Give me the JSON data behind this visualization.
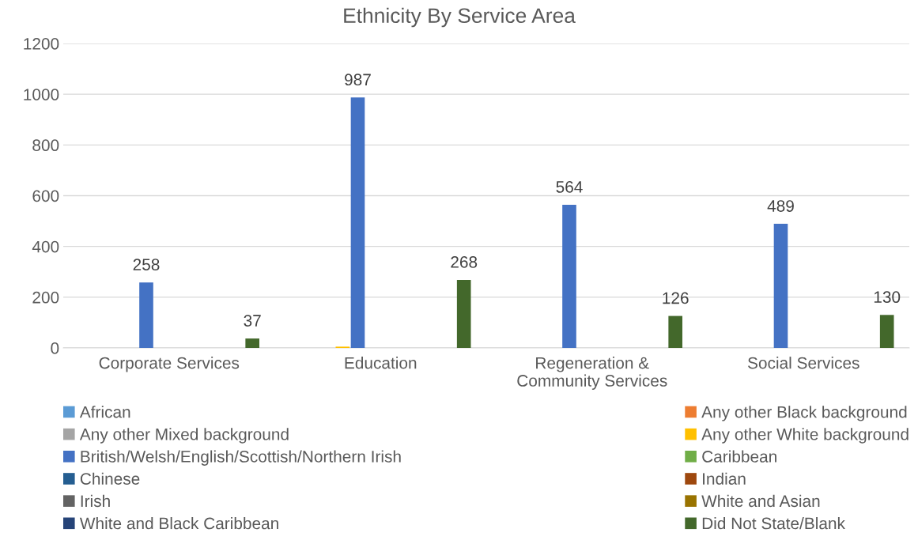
{
  "chart_data": {
    "type": "bar",
    "title": "Ethnicity By Service Area",
    "categories": [
      "Corporate Services",
      "Education",
      "Regeneration &\nCommunity Services",
      "Social Services"
    ],
    "series": [
      {
        "name": "African",
        "color": "#5b9bd5",
        "values": [
          null,
          null,
          null,
          null
        ]
      },
      {
        "name": "Any other Black background",
        "color": "#ed7d31",
        "values": [
          null,
          null,
          null,
          null
        ]
      },
      {
        "name": "Any other Mixed background",
        "color": "#a5a5a5",
        "values": [
          null,
          null,
          null,
          null
        ]
      },
      {
        "name": "Any other White background",
        "color": "#ffc000",
        "values": [
          null,
          5,
          null,
          null
        ]
      },
      {
        "name": "British/Welsh/English/Scottish/Northern Irish",
        "color": "#4472c4",
        "values": [
          258,
          987,
          564,
          489
        ],
        "value_labels": [
          "258",
          "987",
          "564",
          "489"
        ]
      },
      {
        "name": "Caribbean",
        "color": "#70ad47",
        "values": [
          null,
          null,
          null,
          null
        ]
      },
      {
        "name": "Chinese",
        "color": "#255e91",
        "values": [
          null,
          null,
          null,
          null
        ]
      },
      {
        "name": "Indian",
        "color": "#9e480e",
        "values": [
          null,
          null,
          null,
          null
        ]
      },
      {
        "name": "Irish",
        "color": "#636363",
        "values": [
          null,
          null,
          null,
          null
        ]
      },
      {
        "name": "White and Asian",
        "color": "#997300",
        "values": [
          null,
          null,
          null,
          null
        ]
      },
      {
        "name": "White and Black Caribbean",
        "color": "#264478",
        "values": [
          null,
          null,
          null,
          null
        ]
      },
      {
        "name": "Did Not State/Blank",
        "color": "#43682b",
        "values": [
          37,
          268,
          126,
          130
        ],
        "value_labels": [
          "37",
          "268",
          "126",
          "130"
        ]
      }
    ],
    "ylim": [
      0,
      1200
    ],
    "yticks": [
      0,
      200,
      400,
      600,
      800,
      1000,
      1200
    ],
    "grid": "y",
    "legend": "bottom"
  }
}
